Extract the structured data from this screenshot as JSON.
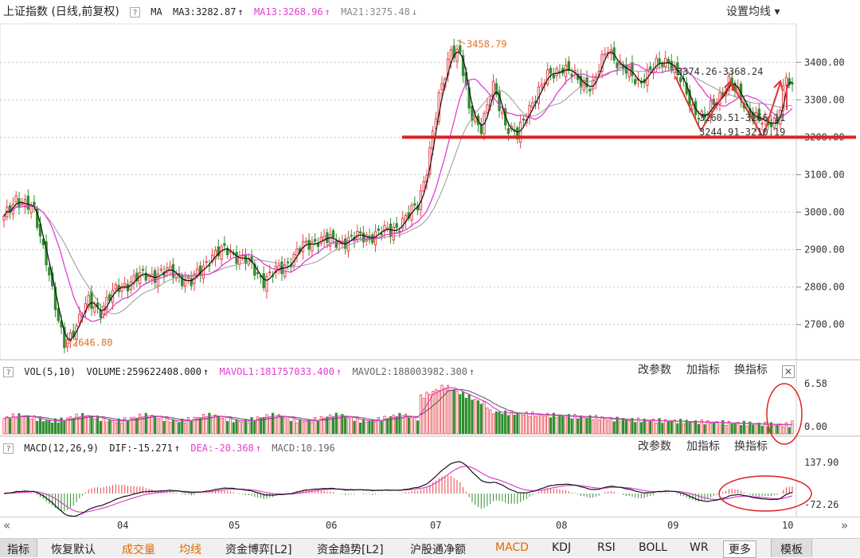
{
  "header": {
    "title": "上证指数 (日线,前复权)",
    "help": "?",
    "ma_label": "MA",
    "ma3": "MA3:3282.87",
    "ma3_arrow": "↑",
    "ma13": "MA13:3268.96",
    "ma13_arrow": "↑",
    "ma21": "MA21:3275.48",
    "ma21_arrow": "↓",
    "settings": "设置均线 ▾"
  },
  "volume_panel": {
    "help": "?",
    "label": "VOL(5,10)",
    "volume": "VOLUME:259622408.000",
    "volume_arrow": "↑",
    "mavol1": "MAVOL1:181757033.400",
    "mavol1_arrow": "↑",
    "mavol2": "MAVOL2:188003982.300",
    "mavol2_arrow": "↑",
    "btn_params": "改参数",
    "btn_add": "加指标",
    "btn_switch": "换指标",
    "close": "✕",
    "axis_top": "6.58",
    "axis_bottom": "0.00"
  },
  "macd_panel": {
    "help": "?",
    "label": "MACD(12,26,9)",
    "dif": "DIF:-15.271",
    "dif_arrow": "↑",
    "dea": "DEA:-20.368",
    "dea_arrow": "↑",
    "macd": "MACD:10.196",
    "btn_params": "改参数",
    "btn_add": "加指标",
    "btn_switch": "换指标",
    "axis_top": "137.90",
    "axis_bottom": "-72.26"
  },
  "annotations": {
    "high_label": "3458.79",
    "low_label": "2646.80",
    "range_label": "3374.26-3368.24",
    "mid_label1": "3260.51-3266.11",
    "mid_label2": "3244.91-3210.19"
  },
  "months": [
    "04",
    "05",
    "06",
    "07",
    "08",
    "09",
    "10"
  ],
  "scroll": {
    "left": "«",
    "right": "»"
  },
  "bottom_tabs": [
    {
      "label": "指标",
      "color": "#222"
    },
    {
      "label": "恢复默认",
      "color": "#222"
    },
    {
      "label": "成交量",
      "color": "#e06a00"
    },
    {
      "label": "均线",
      "color": "#e06a00"
    },
    {
      "label": "资金博弈[L2]",
      "color": "#222"
    },
    {
      "label": "资金趋势[L2]",
      "color": "#222"
    },
    {
      "label": "沪股通净额",
      "color": "#222"
    },
    {
      "label": "MACD",
      "color": "#e06a00"
    },
    {
      "label": "KDJ",
      "color": "#222"
    },
    {
      "label": "RSI",
      "color": "#222"
    },
    {
      "label": "BOLL",
      "color": "#222"
    },
    {
      "label": "WR",
      "color": "#222"
    },
    {
      "label": "更多",
      "color": "#222"
    },
    {
      "label": "模板",
      "color": "#222"
    }
  ],
  "colors": {
    "up": "#e8434a",
    "down": "#2f8f2f",
    "ma3": "#111111",
    "ma13": "#e040d0",
    "ma21": "#999999",
    "support": "#dd2222",
    "grid": "#c8c8c8"
  },
  "chart_data": {
    "type": "candlestick",
    "note": "approximate daily OHLC read from the chart; sparse price axis and volume/MACD subpanels",
    "price_axis": {
      "ticks": [
        2700,
        2800,
        2900,
        3000,
        3100,
        3200,
        3300,
        3400
      ],
      "labels": [
        "2700.00",
        "2800.00",
        "2900.00",
        "3000.00",
        "3100.00",
        "3200.00",
        "3300.00",
        "3400.00"
      ],
      "range": [
        2610,
        3490
      ]
    },
    "support_level": 3200,
    "high": 3458.79,
    "low": 2646.8,
    "price_keypoints": [
      [
        0,
        2980
      ],
      [
        4,
        3040
      ],
      [
        10,
        3000
      ],
      [
        14,
        2880
      ],
      [
        18,
        2700
      ],
      [
        20,
        2650
      ],
      [
        24,
        2700
      ],
      [
        28,
        2760
      ],
      [
        32,
        2740
      ],
      [
        38,
        2800
      ],
      [
        46,
        2830
      ],
      [
        56,
        2840
      ],
      [
        62,
        2810
      ],
      [
        68,
        2880
      ],
      [
        74,
        2900
      ],
      [
        80,
        2870
      ],
      [
        86,
        2820
      ],
      [
        92,
        2850
      ],
      [
        98,
        2900
      ],
      [
        104,
        2930
      ],
      [
        110,
        2920
      ],
      [
        116,
        2930
      ],
      [
        122,
        2940
      ],
      [
        128,
        2950
      ],
      [
        134,
        2990
      ],
      [
        137,
        3020
      ],
      [
        140,
        3120
      ],
      [
        144,
        3300
      ],
      [
        148,
        3440
      ],
      [
        151,
        3420
      ],
      [
        154,
        3270
      ],
      [
        158,
        3230
      ],
      [
        162,
        3330
      ],
      [
        166,
        3240
      ],
      [
        170,
        3200
      ],
      [
        175,
        3300
      ],
      [
        180,
        3360
      ],
      [
        185,
        3390
      ],
      [
        190,
        3350
      ],
      [
        195,
        3340
      ],
      [
        200,
        3440
      ],
      [
        205,
        3380
      ],
      [
        210,
        3350
      ],
      [
        216,
        3390
      ],
      [
        220,
        3410
      ],
      [
        224,
        3350
      ],
      [
        228,
        3280
      ],
      [
        232,
        3250
      ],
      [
        236,
        3300
      ],
      [
        240,
        3350
      ],
      [
        244,
        3300
      ],
      [
        248,
        3260
      ],
      [
        252,
        3230
      ],
      [
        256,
        3250
      ],
      [
        259,
        3360
      ],
      [
        261,
        3320
      ]
    ],
    "volume_scale": [
      0,
      6.58
    ],
    "macd_scale": [
      -72.26,
      137.9
    ]
  }
}
